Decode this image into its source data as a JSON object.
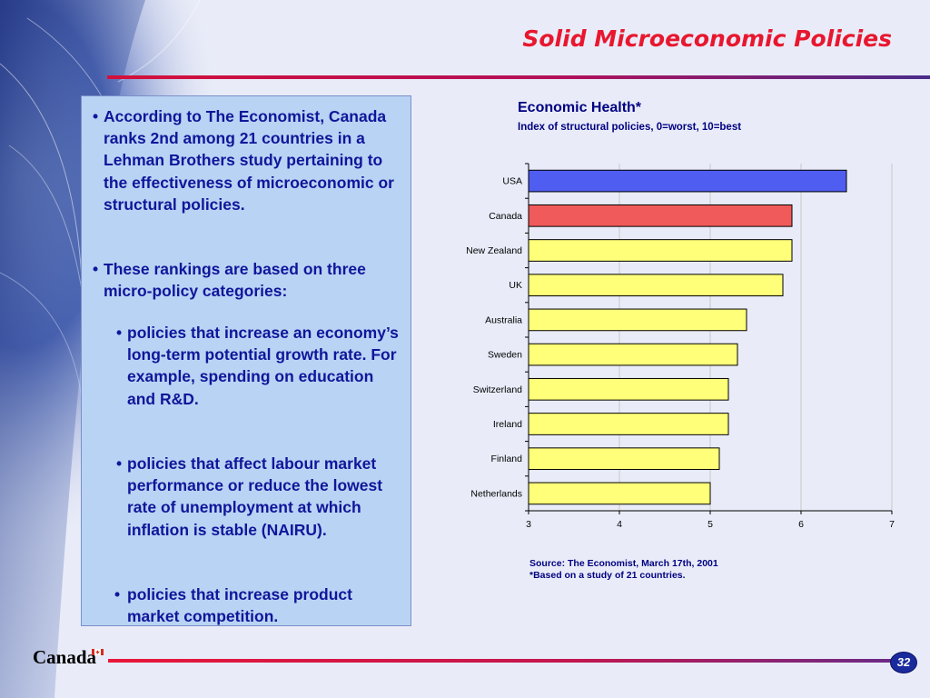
{
  "slide": {
    "title": "Solid Microeconomic Policies",
    "page_number": "32",
    "footer_logo": "Canada"
  },
  "text_panel": {
    "bullets": [
      "According to The Economist, Canada ranks 2nd among 21 countries in a Lehman Brothers study pertaining to the effectiveness of microeconomic or structural policies.",
      "These rankings are based on three micro-policy categories:"
    ],
    "sub_bullets": [
      "policies that increase an economy’s long-term potential growth rate. For example, spending on  education and R&D.",
      "policies that affect labour market performance or reduce the lowest rate of unemployment at which inflation is stable (NAIRU).",
      " policies that increase product market competition."
    ],
    "bullet_glyph": "•"
  },
  "chart_data": {
    "type": "bar",
    "orientation": "horizontal",
    "title": "Economic Health*",
    "subtitle": "Index of structural policies, 0=worst, 10=best",
    "categories": [
      "USA",
      "Canada",
      "New Zealand",
      "UK",
      "Australia",
      "Sweden",
      "Switzerland",
      "Ireland",
      "Finland",
      "Netherlands"
    ],
    "values": [
      6.5,
      5.9,
      5.9,
      5.8,
      5.4,
      5.3,
      5.2,
      5.2,
      5.1,
      5.0
    ],
    "xlim": [
      3,
      7
    ],
    "xticks": [
      "3",
      "4",
      "5",
      "6",
      "7"
    ],
    "grid": true,
    "bar_colors": {
      "USA": "#4f5df0",
      "Canada": "#f05a5a",
      "default": "#ffff7a"
    },
    "notes": [
      "Source: The Economist, March 17th, 2001",
      "*Based on a study of 21 countries."
    ]
  },
  "colors": {
    "title_red": "#e8172f",
    "text_navy": "#10169a",
    "panel_blue": "#b9d3f4"
  }
}
